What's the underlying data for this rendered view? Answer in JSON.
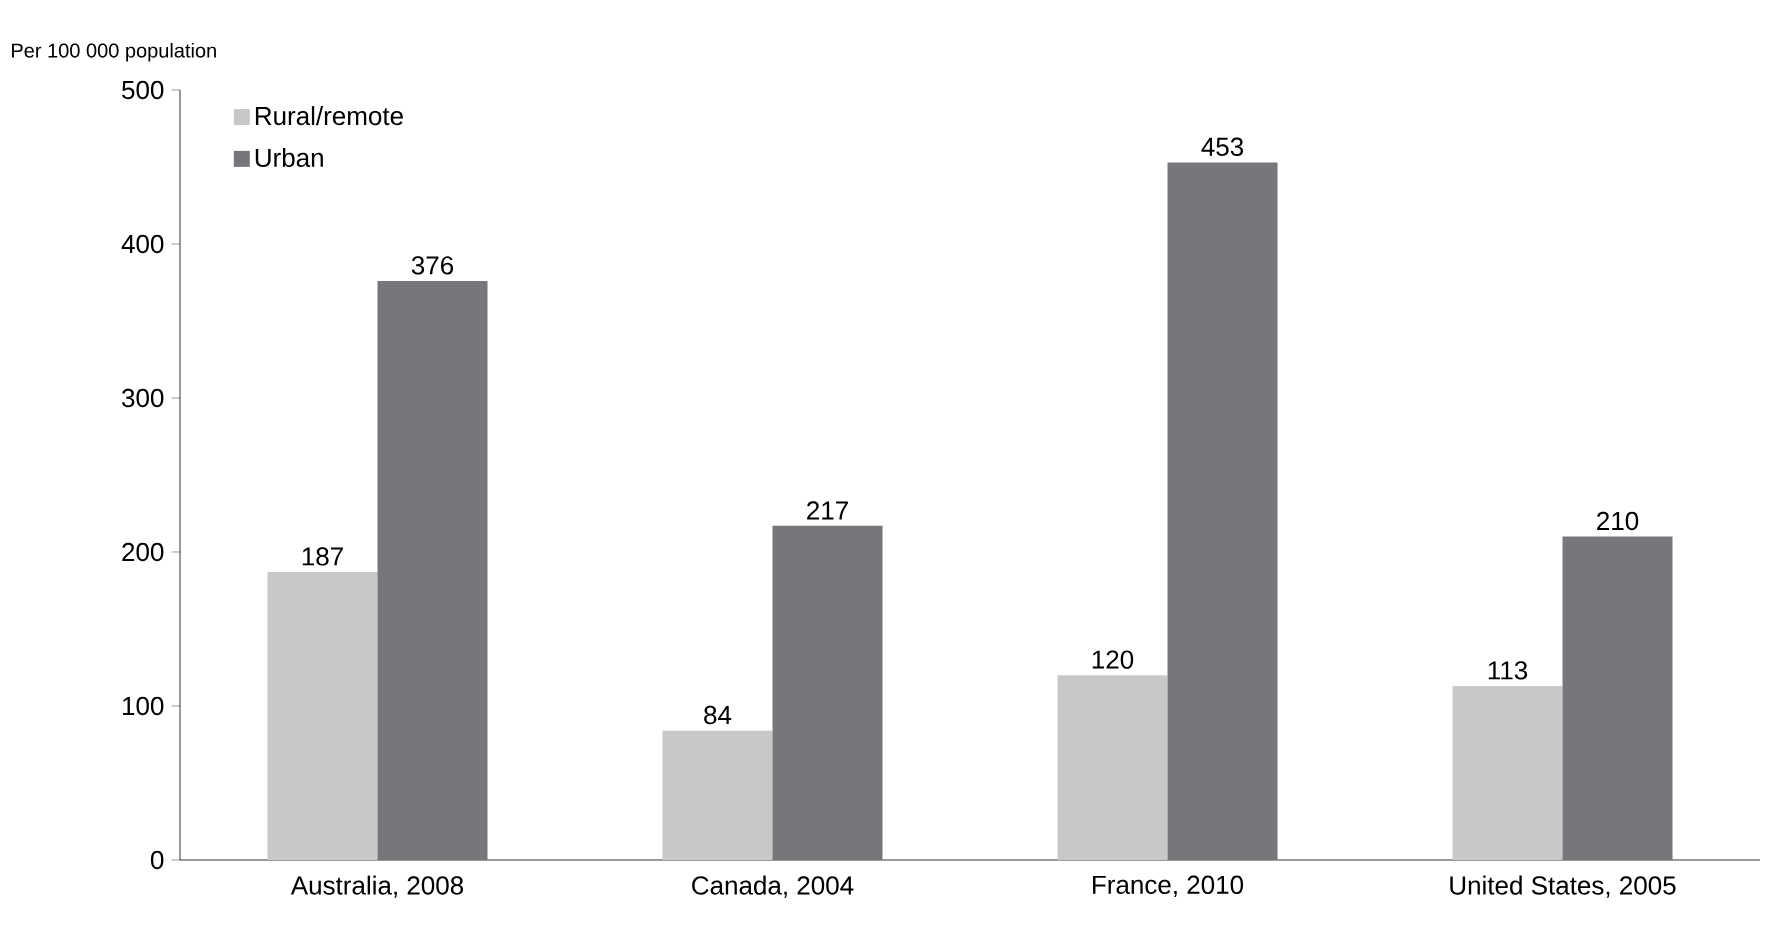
{
  "chart_data": {
    "type": "bar",
    "ylabel": "Per 100 000 population",
    "categories": [
      "Australia, 2008",
      "Canada, 2004",
      "France, 2010",
      "United States, 2005"
    ],
    "series": [
      {
        "name": "Rural/remote",
        "color": "#c8c8c8",
        "values": [
          187,
          84,
          120,
          113
        ]
      },
      {
        "name": "Urban",
        "color": "#77777b",
        "values": [
          376,
          217,
          453,
          210
        ]
      }
    ],
    "ylim": [
      0,
      500
    ],
    "yticks": [
      0,
      100,
      200,
      300,
      400,
      500
    ],
    "data_labels": true,
    "grid": false,
    "legend": "top left"
  }
}
